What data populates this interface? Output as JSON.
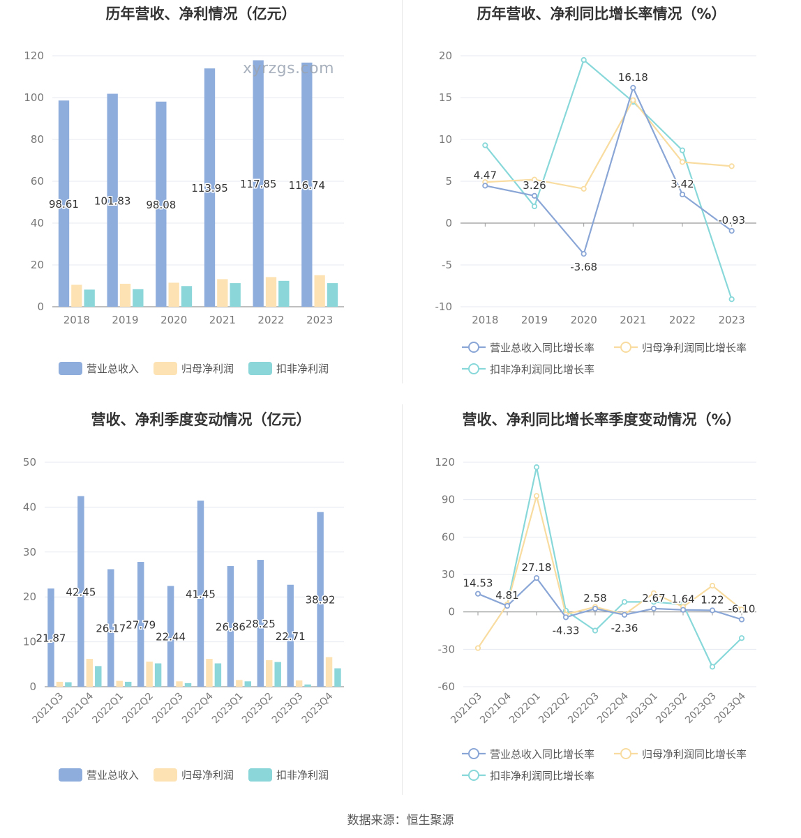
{
  "footer": "数据来源：恒生聚源",
  "watermark": "xyrzgs.com",
  "colors": {
    "revenue": "#8eaddc",
    "net_profit": "#fde3b4",
    "deducted": "#8ad6d8",
    "revenue_line": "#8aa6d6",
    "net_profit_line": "#f8dca0",
    "deducted_line": "#88d8da",
    "grid": "#e6e9f0",
    "axis": "#999999",
    "tick_text": "#777777"
  },
  "chart_data": [
    {
      "id": "c1",
      "type": "bar",
      "title": "历年营收、净利情况（亿元）",
      "categories": [
        "2018",
        "2019",
        "2020",
        "2021",
        "2022",
        "2023"
      ],
      "ylim": [
        0,
        120
      ],
      "yticks": [
        0,
        20,
        40,
        60,
        80,
        100,
        120
      ],
      "series": [
        {
          "name": "营业总收入",
          "values": [
            98.61,
            101.83,
            98.08,
            113.95,
            117.85,
            116.74
          ],
          "labels": [
            "98.61",
            "101.83",
            "98.08",
            "113.95",
            "117.85",
            "116.74"
          ]
        },
        {
          "name": "归母净利润",
          "values": [
            10.5,
            11.0,
            11.5,
            13.2,
            14.2,
            15.1
          ]
        },
        {
          "name": "扣非净利润",
          "values": [
            8.2,
            8.4,
            9.9,
            11.3,
            12.4,
            11.3
          ]
        }
      ],
      "legend": "bottom"
    },
    {
      "id": "c2",
      "type": "line",
      "title": "历年营收、净利同比增长率情况（%）",
      "categories": [
        "2018",
        "2019",
        "2020",
        "2021",
        "2022",
        "2023"
      ],
      "ylim": [
        -10,
        20
      ],
      "yticks": [
        -10,
        -5,
        0,
        5,
        10,
        15,
        20
      ],
      "series": [
        {
          "name": "营业总收入同比增长率",
          "values": [
            4.47,
            3.26,
            -3.68,
            16.18,
            3.42,
            -0.93
          ],
          "labels": [
            "4.47",
            "3.26",
            "-3.68",
            "16.18",
            "3.42",
            "-0.93"
          ]
        },
        {
          "name": "归母净利润同比增长率",
          "values": [
            4.9,
            5.2,
            4.1,
            14.7,
            7.3,
            6.8
          ]
        },
        {
          "name": "扣非净利润同比增长率",
          "values": [
            9.3,
            2.0,
            19.5,
            14.5,
            8.7,
            -9.1
          ]
        }
      ],
      "legend": "bottom"
    },
    {
      "id": "c3",
      "type": "bar",
      "title": "营收、净利季度变动情况（亿元）",
      "categories": [
        "2021Q3",
        "2021Q4",
        "2022Q1",
        "2022Q2",
        "2022Q3",
        "2022Q4",
        "2023Q1",
        "2023Q2",
        "2023Q3",
        "2023Q4"
      ],
      "ylim": [
        0,
        50
      ],
      "yticks": [
        0,
        10,
        20,
        30,
        40,
        50
      ],
      "series": [
        {
          "name": "营业总收入",
          "values": [
            21.87,
            42.45,
            26.17,
            27.79,
            22.44,
            41.45,
            26.86,
            28.25,
            22.71,
            38.92
          ],
          "labels": [
            "21.87",
            "42.45",
            "26.17",
            "27.79",
            "22.44",
            "41.45",
            "26.86",
            "28.25",
            "22.71",
            "38.92"
          ]
        },
        {
          "name": "归母净利润",
          "values": [
            1.1,
            6.2,
            1.3,
            5.6,
            1.2,
            6.2,
            1.5,
            5.9,
            1.4,
            6.6
          ]
        },
        {
          "name": "扣非净利润",
          "values": [
            1.0,
            4.6,
            1.1,
            5.2,
            0.8,
            5.2,
            1.2,
            5.5,
            0.5,
            4.1
          ]
        }
      ],
      "legend": "bottom"
    },
    {
      "id": "c4",
      "type": "line",
      "title": "营收、净利同比增长率季度变动情况（%）",
      "categories": [
        "2021Q3",
        "2021Q4",
        "2022Q1",
        "2022Q2",
        "2022Q3",
        "2022Q4",
        "2023Q1",
        "2023Q2",
        "2023Q3",
        "2023Q4"
      ],
      "ylim": [
        -60,
        120
      ],
      "yticks": [
        -60,
        -30,
        0,
        30,
        60,
        90,
        120
      ],
      "series": [
        {
          "name": "营业总收入同比增长率",
          "values": [
            14.53,
            4.81,
            27.18,
            -4.33,
            2.58,
            -2.36,
            2.67,
            1.64,
            1.22,
            -6.1
          ],
          "labels": [
            "14.53",
            "4.81",
            "27.18",
            "-4.33",
            "2.58",
            "-2.36",
            "2.67",
            "1.64",
            "1.22",
            "-6.10"
          ]
        },
        {
          "name": "归母净利润同比增长率",
          "values": [
            -29,
            6,
            93,
            -2,
            4,
            -2,
            15,
            4,
            21,
            2
          ]
        },
        {
          "name": "扣非净利润同比增长率",
          "values": [
            null,
            6,
            116,
            1,
            -15,
            8,
            8,
            6,
            -44,
            -21
          ]
        }
      ],
      "legend": "bottom"
    }
  ]
}
